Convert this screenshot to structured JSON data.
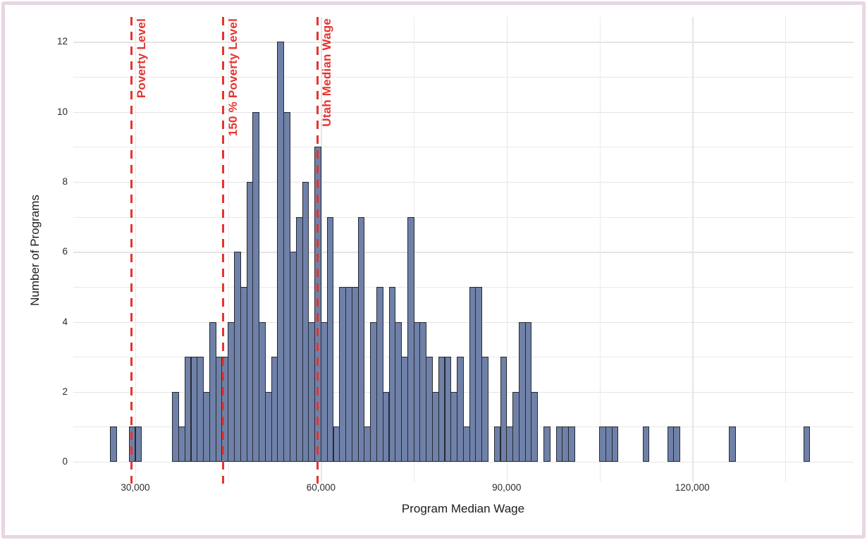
{
  "chart_data": {
    "type": "bar",
    "subtype": "histogram",
    "title": "",
    "xlabel": "Program Median Wage",
    "ylabel": "Number of Programs",
    "bin_width": 1000,
    "bin_start_wages": [
      26000,
      29000,
      30000,
      36000,
      37000,
      38000,
      39000,
      40000,
      41000,
      42000,
      43000,
      44000,
      45000,
      46000,
      47000,
      48000,
      49000,
      50000,
      51000,
      52000,
      53000,
      54000,
      55000,
      56000,
      57000,
      58000,
      59000,
      60000,
      61000,
      62000,
      63000,
      64000,
      65000,
      66000,
      67000,
      68000,
      69000,
      70000,
      71000,
      72000,
      73000,
      74000,
      75000,
      76000,
      77000,
      78000,
      79000,
      80000,
      81000,
      82000,
      83000,
      84000,
      85000,
      86000,
      88000,
      89000,
      90000,
      91000,
      92000,
      93000,
      94000,
      96000,
      98000,
      99000,
      100000,
      105000,
      106000,
      107000,
      112000,
      116000,
      117000,
      126000,
      138000
    ],
    "counts": [
      1,
      1,
      1,
      2,
      1,
      3,
      3,
      3,
      2,
      4,
      3,
      3,
      4,
      6,
      5,
      8,
      10,
      4,
      2,
      3,
      12,
      10,
      6,
      7,
      8,
      4,
      9,
      4,
      7,
      1,
      5,
      5,
      5,
      7,
      1,
      4,
      5,
      2,
      5,
      4,
      3,
      7,
      4,
      4,
      3,
      2,
      3,
      3,
      2,
      3,
      1,
      5,
      5,
      3,
      1,
      3,
      1,
      2,
      4,
      4,
      2,
      1,
      1,
      1,
      1,
      1,
      1,
      1,
      1,
      1,
      1,
      1,
      1
    ],
    "reference_lines": [
      {
        "label": "Poverty Level",
        "value": 29400
      },
      {
        "label": "150 % Poverty Level",
        "value": 44200
      },
      {
        "label": "Utah Median Wage",
        "value": 59400
      }
    ],
    "x_axis": {
      "tick_values": [
        30000,
        60000,
        90000,
        120000
      ],
      "tick_labels": [
        "30,000",
        "60,000",
        "90,000",
        "120,000"
      ],
      "minor_grid_step": 15000,
      "grid_min": 30000,
      "grid_max": 135000
    },
    "y_axis": {
      "tick_values": [
        0,
        2,
        4,
        6,
        8,
        10,
        12
      ],
      "tick_labels": [
        "0",
        "2",
        "4",
        "6",
        "8",
        "10",
        "12"
      ],
      "minor_grid_step": 1,
      "ylim": [
        0,
        12
      ]
    },
    "legend": null,
    "grid": "on",
    "colors": {
      "bar_fill": "#6f81a8",
      "bar_stroke": "#262a33",
      "reference_red": "#e73330",
      "gridline": "#e9e9e9",
      "frame_pink": "#e8d6e4",
      "background": "#ffffff",
      "text": "#1c1c1c"
    }
  }
}
